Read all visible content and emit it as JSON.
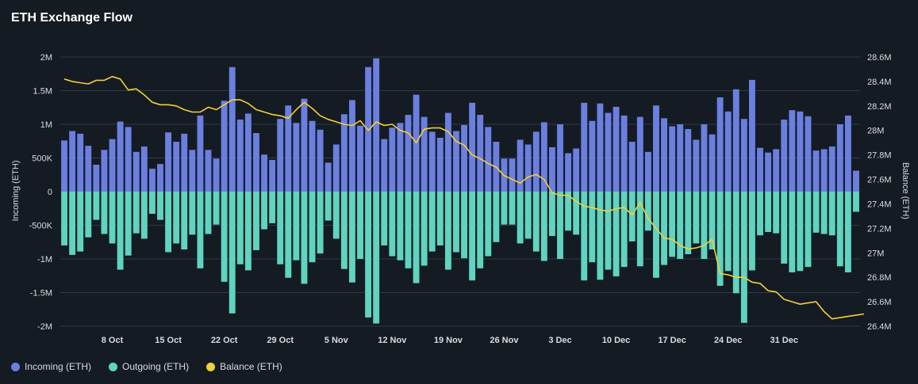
{
  "title": "ETH Exchange Flow",
  "colors": {
    "incoming": "#6b7fe0",
    "outgoing": "#5fd4c0",
    "balance": "#f4cf3a"
  },
  "legend": {
    "incoming": "Incoming (ETH)",
    "outgoing": "Outgoing (ETH)",
    "balance": "Balance (ETH)"
  },
  "chart_data": {
    "type": "bar",
    "title": "ETH Exchange Flow",
    "ylabel_left": "Incoming (ETH)",
    "ylabel_right": "Balance (ETH)",
    "ylim_left": [
      -2000000,
      2000000
    ],
    "ylim_right": [
      26400000,
      28600000
    ],
    "left_ticks": [
      {
        "value": 2000000,
        "label": "2M"
      },
      {
        "value": 1500000,
        "label": "1.5M"
      },
      {
        "value": 1000000,
        "label": "1M"
      },
      {
        "value": 500000,
        "label": "500K"
      },
      {
        "value": 0,
        "label": "0"
      },
      {
        "value": -500000,
        "label": "-500K"
      },
      {
        "value": -1000000,
        "label": "-1M"
      },
      {
        "value": -1500000,
        "label": "-1.5M"
      },
      {
        "value": -2000000,
        "label": "-2M"
      }
    ],
    "right_ticks": [
      {
        "value": 28600000,
        "label": "28.6M"
      },
      {
        "value": 28400000,
        "label": "28.4M"
      },
      {
        "value": 28200000,
        "label": "28.2M"
      },
      {
        "value": 28000000,
        "label": "28M"
      },
      {
        "value": 27800000,
        "label": "27.8M"
      },
      {
        "value": 27600000,
        "label": "27.6M"
      },
      {
        "value": 27400000,
        "label": "27.4M"
      },
      {
        "value": 27200000,
        "label": "27.2M"
      },
      {
        "value": 27000000,
        "label": "27M"
      },
      {
        "value": 26800000,
        "label": "26.8M"
      },
      {
        "value": 26600000,
        "label": "26.6M"
      },
      {
        "value": 26400000,
        "label": "26.4M"
      }
    ],
    "x_ticks": [
      {
        "index": 6,
        "label": "8 Oct"
      },
      {
        "index": 13,
        "label": "15 Oct"
      },
      {
        "index": 20,
        "label": "22 Oct"
      },
      {
        "index": 27,
        "label": "29 Oct"
      },
      {
        "index": 34,
        "label": "5 Nov"
      },
      {
        "index": 41,
        "label": "12 Nov"
      },
      {
        "index": 48,
        "label": "19 Nov"
      },
      {
        "index": 55,
        "label": "26 Nov"
      },
      {
        "index": 62,
        "label": "3 Dec"
      },
      {
        "index": 69,
        "label": "10 Dec"
      },
      {
        "index": 76,
        "label": "17 Dec"
      },
      {
        "index": 83,
        "label": "24 Dec"
      },
      {
        "index": 90,
        "label": "31 Dec"
      }
    ],
    "series": [
      {
        "name": "Incoming (ETH)",
        "values": [
          760000,
          900000,
          860000,
          680000,
          400000,
          620000,
          780000,
          1040000,
          960000,
          590000,
          670000,
          340000,
          410000,
          880000,
          740000,
          860000,
          620000,
          1130000,
          620000,
          490000,
          1350000,
          1850000,
          1070000,
          1160000,
          870000,
          550000,
          470000,
          1080000,
          1280000,
          1020000,
          1380000,
          1050000,
          920000,
          430000,
          700000,
          1150000,
          1360000,
          980000,
          1850000,
          1980000,
          780000,
          950000,
          1020000,
          1140000,
          1440000,
          1110000,
          890000,
          800000,
          1170000,
          900000,
          990000,
          1320000,
          1140000,
          960000,
          740000,
          490000,
          490000,
          770000,
          700000,
          890000,
          1030000,
          660000,
          1000000,
          570000,
          640000,
          1320000,
          1050000,
          1310000,
          1170000,
          1260000,
          1130000,
          740000,
          1110000,
          590000,
          1280000,
          1090000,
          970000,
          1000000,
          930000,
          770000,
          1000000,
          850000,
          1400000,
          1190000,
          1520000,
          1080000,
          1660000,
          650000,
          580000,
          630000,
          1070000,
          1210000,
          1190000,
          1120000,
          610000,
          630000,
          670000,
          1000000,
          1130000,
          310000
        ]
      },
      {
        "name": "Outgoing (ETH)",
        "values": [
          -800000,
          -940000,
          -890000,
          -680000,
          -420000,
          -630000,
          -770000,
          -1160000,
          -950000,
          -620000,
          -700000,
          -330000,
          -420000,
          -900000,
          -770000,
          -860000,
          -640000,
          -1140000,
          -630000,
          -490000,
          -1340000,
          -1810000,
          -1080000,
          -1170000,
          -870000,
          -560000,
          -470000,
          -1080000,
          -1280000,
          -1020000,
          -1370000,
          -1050000,
          -920000,
          -430000,
          -700000,
          -1150000,
          -1350000,
          -1000000,
          -1870000,
          -1960000,
          -800000,
          -960000,
          -1020000,
          -1140000,
          -1360000,
          -1100000,
          -890000,
          -800000,
          -1160000,
          -900000,
          -990000,
          -1320000,
          -1140000,
          -960000,
          -750000,
          -490000,
          -490000,
          -770000,
          -700000,
          -890000,
          -1030000,
          -660000,
          -1000000,
          -580000,
          -640000,
          -1320000,
          -1050000,
          -1310000,
          -1160000,
          -1260000,
          -1120000,
          -740000,
          -1110000,
          -580000,
          -1280000,
          -1090000,
          -970000,
          -1000000,
          -930000,
          -770000,
          -1000000,
          -860000,
          -1400000,
          -1180000,
          -1510000,
          -1950000,
          -1170000,
          -650000,
          -600000,
          -620000,
          -1070000,
          -1200000,
          -1180000,
          -1120000,
          -610000,
          -630000,
          -650000,
          -1110000,
          -1200000,
          -300000
        ]
      },
      {
        "name": "Balance (ETH)",
        "values": [
          28420000,
          28400000,
          28390000,
          28380000,
          28410000,
          28410000,
          28440000,
          28420000,
          28330000,
          28340000,
          28290000,
          28230000,
          28210000,
          28210000,
          28200000,
          28170000,
          28150000,
          28150000,
          28190000,
          28170000,
          28210000,
          28250000,
          28250000,
          28220000,
          28170000,
          28150000,
          28130000,
          28120000,
          28100000,
          28170000,
          28230000,
          28180000,
          28120000,
          28090000,
          28070000,
          28050000,
          28040000,
          28080000,
          28000000,
          28070000,
          28040000,
          28050000,
          28000000,
          27980000,
          27900000,
          28010000,
          28020000,
          28020000,
          27990000,
          27910000,
          27880000,
          27800000,
          27770000,
          27730000,
          27700000,
          27630000,
          27600000,
          27570000,
          27620000,
          27640000,
          27600000,
          27490000,
          27470000,
          27470000,
          27420000,
          27380000,
          27370000,
          27350000,
          27340000,
          27360000,
          27370000,
          27310000,
          27410000,
          27280000,
          27200000,
          27120000,
          27110000,
          27060000,
          27030000,
          27040000,
          27060000,
          27110000,
          26830000,
          26820000,
          26800000,
          26800000,
          26760000,
          26750000,
          26690000,
          26680000,
          26620000,
          26600000,
          26580000,
          26590000,
          26600000,
          26520000,
          26460000,
          26470000,
          26480000,
          26490000,
          26500000
        ]
      }
    ]
  }
}
